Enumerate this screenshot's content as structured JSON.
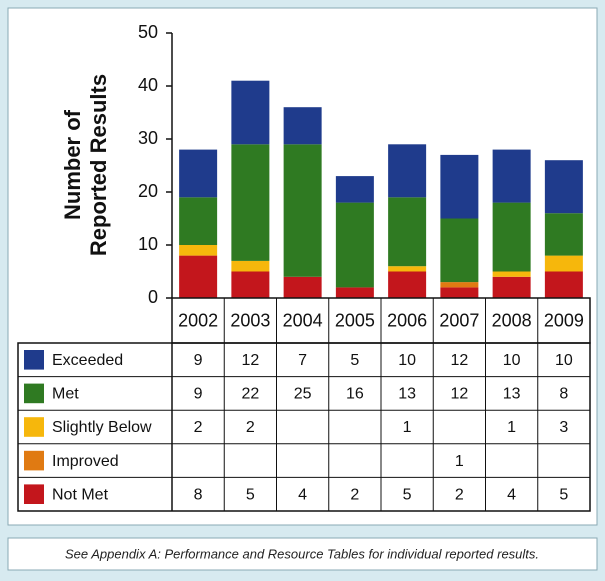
{
  "chart_data": {
    "type": "stacked_bar",
    "y_label": [
      "Number of",
      "Reported Results"
    ],
    "categories": [
      "2002",
      "2003",
      "2004",
      "2005",
      "2006",
      "2007",
      "2008",
      "2009"
    ],
    "series": [
      {
        "name": "Exceeded",
        "color": "#1f3b8c",
        "values": [
          9,
          12,
          7,
          5,
          10,
          12,
          10,
          10
        ]
      },
      {
        "name": "Met",
        "color": "#2f7a22",
        "values": [
          9,
          22,
          25,
          16,
          13,
          12,
          13,
          8
        ]
      },
      {
        "name": "Slightly Below",
        "color": "#f6b70c",
        "values": [
          2,
          2,
          null,
          null,
          1,
          null,
          1,
          3
        ]
      },
      {
        "name": "Improved",
        "color": "#e07a12",
        "values": [
          null,
          null,
          null,
          null,
          null,
          1,
          null,
          null
        ]
      },
      {
        "name": "Not Met",
        "color": "#c3161c",
        "values": [
          8,
          5,
          4,
          2,
          5,
          2,
          4,
          5
        ]
      }
    ],
    "ylim": [
      0,
      50
    ],
    "yticks": [
      0,
      10,
      20,
      30,
      40,
      50
    ],
    "footnote": "See Appendix A: Performance and Resource Tables for individual reported results."
  }
}
